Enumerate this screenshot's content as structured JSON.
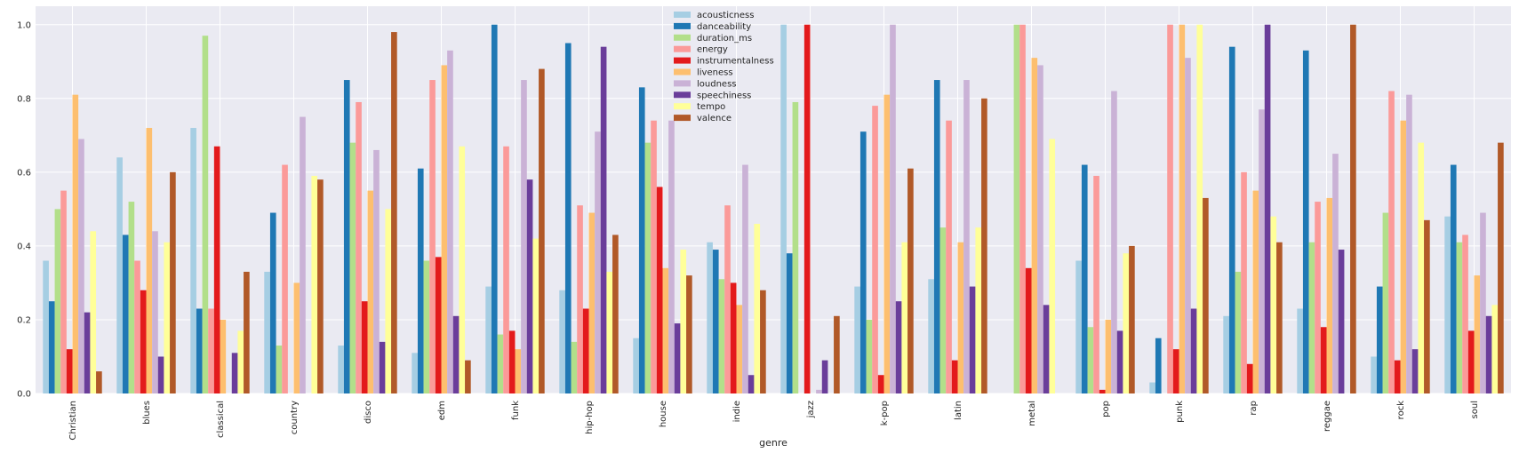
{
  "chart_data": {
    "type": "bar",
    "xlabel": "genre",
    "ylabel": "",
    "ylim": [
      0,
      1.05
    ],
    "yticks": [
      "0.0",
      "0.2",
      "0.4",
      "0.6",
      "0.8",
      "1.0"
    ],
    "ytick_values": [
      0,
      0.2,
      0.4,
      0.6,
      0.8,
      1.0
    ],
    "grid": true,
    "legend_position": "top-center",
    "categories": [
      "Christian",
      "blues",
      "classical",
      "country",
      "disco",
      "edm",
      "funk",
      "hip-hop",
      "house",
      "indie",
      "jazz",
      "k-pop",
      "latin",
      "metal",
      "pop",
      "punk",
      "rap",
      "reggae",
      "rock",
      "soul"
    ],
    "series": [
      {
        "name": "acousticness",
        "color": "#a6cee3",
        "values": [
          0.36,
          0.64,
          0.72,
          0.33,
          0.13,
          0.11,
          0.29,
          0.28,
          0.15,
          0.41,
          1.0,
          0.29,
          0.31,
          0.0,
          0.36,
          0.03,
          0.21,
          0.23,
          0.1,
          0.48
        ]
      },
      {
        "name": "danceability",
        "color": "#1f78b4",
        "values": [
          0.25,
          0.43,
          0.23,
          0.49,
          0.85,
          0.61,
          1.0,
          0.95,
          0.83,
          0.39,
          0.38,
          0.71,
          0.85,
          0.0,
          0.62,
          0.15,
          0.94,
          0.93,
          0.29,
          0.62
        ]
      },
      {
        "name": "duration_ms",
        "color": "#b2df8a",
        "values": [
          0.5,
          0.52,
          0.97,
          0.13,
          0.68,
          0.36,
          0.16,
          0.14,
          0.68,
          0.31,
          0.79,
          0.2,
          0.45,
          1.0,
          0.18,
          0.0,
          0.33,
          0.41,
          0.49,
          0.41
        ]
      },
      {
        "name": "energy",
        "color": "#fb9a99",
        "values": [
          0.55,
          0.36,
          0.23,
          0.62,
          0.79,
          0.85,
          0.67,
          0.51,
          0.74,
          0.51,
          0.0,
          0.78,
          0.74,
          1.0,
          0.59,
          1.0,
          0.6,
          0.52,
          0.82,
          0.43
        ]
      },
      {
        "name": "instrumentalness",
        "color": "#e31a1c",
        "values": [
          0.12,
          0.28,
          0.67,
          0.0,
          0.25,
          0.37,
          0.17,
          0.23,
          0.56,
          0.3,
          1.0,
          0.05,
          0.09,
          0.34,
          0.01,
          0.12,
          0.08,
          0.18,
          0.09,
          0.17
        ]
      },
      {
        "name": "liveness",
        "color": "#fdbf6f",
        "values": [
          0.81,
          0.72,
          0.2,
          0.3,
          0.55,
          0.89,
          0.12,
          0.49,
          0.34,
          0.24,
          0.0,
          0.81,
          0.41,
          0.91,
          0.2,
          1.0,
          0.55,
          0.53,
          0.74,
          0.32
        ]
      },
      {
        "name": "loudness",
        "color": "#cab2d6",
        "values": [
          0.69,
          0.44,
          0.0,
          0.75,
          0.66,
          0.93,
          0.85,
          0.71,
          0.74,
          0.62,
          0.01,
          1.0,
          0.85,
          0.89,
          0.82,
          0.91,
          0.77,
          0.65,
          0.81,
          0.49
        ]
      },
      {
        "name": "speechiness",
        "color": "#6a3d9a",
        "values": [
          0.22,
          0.1,
          0.11,
          0.0,
          0.14,
          0.21,
          0.58,
          0.94,
          0.19,
          0.05,
          0.09,
          0.25,
          0.29,
          0.24,
          0.17,
          0.23,
          1.0,
          0.39,
          0.12,
          0.21
        ]
      },
      {
        "name": "tempo",
        "color": "#ffff99",
        "values": [
          0.44,
          0.41,
          0.17,
          0.59,
          0.5,
          0.67,
          0.42,
          0.33,
          0.39,
          0.46,
          0.0,
          0.41,
          0.45,
          0.69,
          0.38,
          1.0,
          0.48,
          0.0,
          0.68,
          0.24
        ]
      },
      {
        "name": "valence",
        "color": "#b15928",
        "values": [
          0.06,
          0.6,
          0.33,
          0.58,
          0.98,
          0.09,
          0.88,
          0.43,
          0.32,
          0.28,
          0.21,
          0.61,
          0.8,
          0.0,
          0.4,
          0.53,
          0.41,
          1.0,
          0.47,
          0.68
        ]
      }
    ]
  }
}
